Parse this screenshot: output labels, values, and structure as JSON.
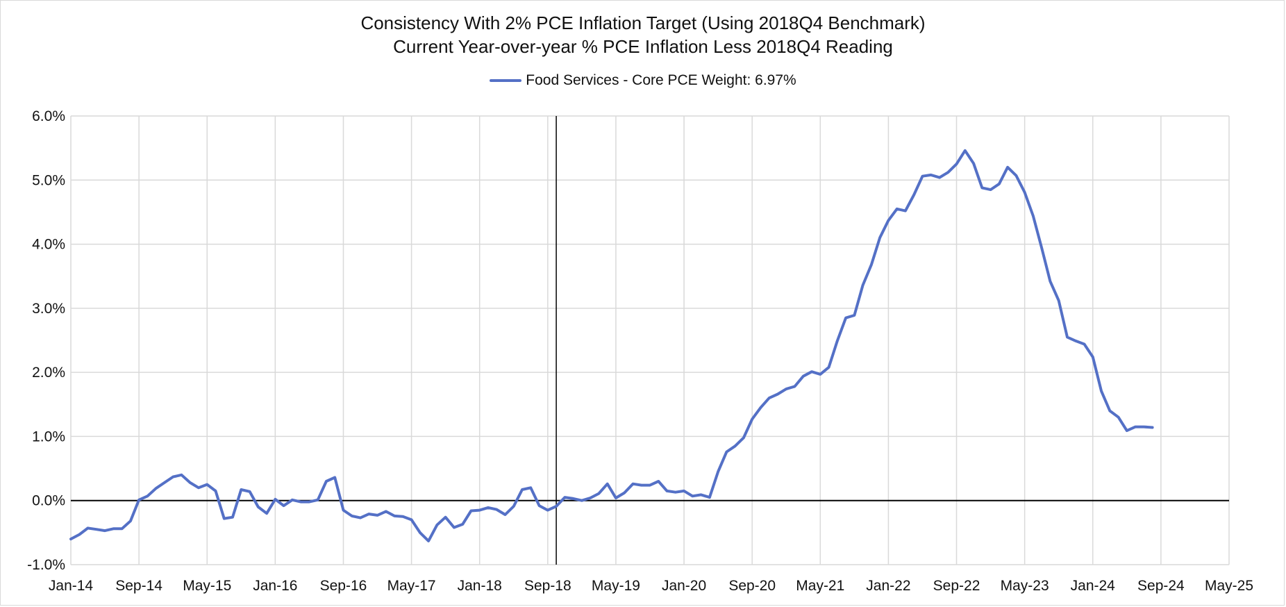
{
  "chart_data": {
    "type": "line",
    "title": "Consistency With 2% PCE Inflation Target (Using 2018Q4 Benchmark)",
    "subtitle": "Current Year-over-year % PCE Inflation Less 2018Q4 Reading",
    "legend_position": "top-center",
    "grid": true,
    "ylim": [
      -1.0,
      6.0
    ],
    "y_ticks": [
      "-1.0%",
      "0.0%",
      "1.0%",
      "2.0%",
      "3.0%",
      "4.0%",
      "5.0%",
      "6.0%"
    ],
    "y_tick_values": [
      -1,
      0,
      1,
      2,
      3,
      4,
      5,
      6
    ],
    "xlim": [
      "2014-01",
      "2025-05"
    ],
    "x_ticks": [
      "Jan-14",
      "Sep-14",
      "May-15",
      "Jan-16",
      "Sep-16",
      "May-17",
      "Jan-18",
      "Sep-18",
      "May-19",
      "Jan-20",
      "Sep-20",
      "May-21",
      "Jan-22",
      "Sep-22",
      "May-23",
      "Jan-24",
      "Sep-24",
      "May-25"
    ],
    "x_tick_values": [
      "2014-01",
      "2014-09",
      "2015-05",
      "2016-01",
      "2016-09",
      "2017-05",
      "2018-01",
      "2018-09",
      "2019-05",
      "2020-01",
      "2020-09",
      "2021-05",
      "2022-01",
      "2022-09",
      "2023-05",
      "2024-01",
      "2024-09",
      "2025-05"
    ],
    "vertical_reference_line": "2018-10",
    "series": [
      {
        "name": "Food Services - Core PCE Weight: 6.97%",
        "color": "#5470c6",
        "x": [
          "2014-01",
          "2014-02",
          "2014-03",
          "2014-04",
          "2014-05",
          "2014-06",
          "2014-07",
          "2014-08",
          "2014-09",
          "2014-10",
          "2014-11",
          "2014-12",
          "2015-01",
          "2015-02",
          "2015-03",
          "2015-04",
          "2015-05",
          "2015-06",
          "2015-07",
          "2015-08",
          "2015-09",
          "2015-10",
          "2015-11",
          "2015-12",
          "2016-01",
          "2016-02",
          "2016-03",
          "2016-04",
          "2016-05",
          "2016-06",
          "2016-07",
          "2016-08",
          "2016-09",
          "2016-10",
          "2016-11",
          "2016-12",
          "2017-01",
          "2017-02",
          "2017-03",
          "2017-04",
          "2017-05",
          "2017-06",
          "2017-07",
          "2017-08",
          "2017-09",
          "2017-10",
          "2017-11",
          "2017-12",
          "2018-01",
          "2018-02",
          "2018-03",
          "2018-04",
          "2018-05",
          "2018-06",
          "2018-07",
          "2018-08",
          "2018-09",
          "2018-10",
          "2018-11",
          "2018-12",
          "2019-01",
          "2019-02",
          "2019-03",
          "2019-04",
          "2019-05",
          "2019-06",
          "2019-07",
          "2019-08",
          "2019-09",
          "2019-10",
          "2019-11",
          "2019-12",
          "2020-01",
          "2020-02",
          "2020-03",
          "2020-04",
          "2020-05",
          "2020-06",
          "2020-07",
          "2020-08",
          "2020-09",
          "2020-10",
          "2020-11",
          "2020-12",
          "2021-01",
          "2021-02",
          "2021-03",
          "2021-04",
          "2021-05",
          "2021-06",
          "2021-07",
          "2021-08",
          "2021-09",
          "2021-10",
          "2021-11",
          "2021-12",
          "2022-01",
          "2022-02",
          "2022-03",
          "2022-04",
          "2022-05",
          "2022-06",
          "2022-07",
          "2022-08",
          "2022-09",
          "2022-10",
          "2022-11",
          "2022-12",
          "2023-01",
          "2023-02",
          "2023-03",
          "2023-04",
          "2023-05",
          "2023-06",
          "2023-07",
          "2023-08",
          "2023-09",
          "2023-10",
          "2023-11",
          "2023-12",
          "2024-01",
          "2024-02",
          "2024-03",
          "2024-04",
          "2024-05",
          "2024-06",
          "2024-07",
          "2024-08"
        ],
        "values": [
          -0.6,
          -0.53,
          -0.43,
          -0.45,
          -0.47,
          -0.44,
          -0.44,
          -0.32,
          0.01,
          0.07,
          0.19,
          0.28,
          0.37,
          0.4,
          0.28,
          0.2,
          0.25,
          0.15,
          -0.28,
          -0.26,
          0.17,
          0.14,
          -0.1,
          -0.2,
          0.02,
          -0.08,
          0.01,
          -0.02,
          -0.02,
          0.01,
          0.3,
          0.36,
          -0.15,
          -0.24,
          -0.27,
          -0.21,
          -0.23,
          -0.17,
          -0.24,
          -0.25,
          -0.3,
          -0.5,
          -0.63,
          -0.38,
          -0.26,
          -0.42,
          -0.37,
          -0.16,
          -0.15,
          -0.11,
          -0.14,
          -0.22,
          -0.09,
          0.17,
          0.2,
          -0.08,
          -0.15,
          -0.09,
          0.05,
          0.03,
          0.0,
          0.04,
          0.11,
          0.26,
          0.04,
          0.12,
          0.26,
          0.24,
          0.24,
          0.3,
          0.15,
          0.13,
          0.15,
          0.07,
          0.09,
          0.05,
          0.45,
          0.76,
          0.85,
          0.98,
          1.27,
          1.45,
          1.6,
          1.66,
          1.74,
          1.78,
          1.94,
          2.01,
          1.97,
          2.08,
          2.49,
          2.85,
          2.89,
          3.36,
          3.68,
          4.1,
          4.37,
          4.55,
          4.52,
          4.77,
          5.06,
          5.08,
          5.04,
          5.12,
          5.25,
          5.46,
          5.26,
          4.88,
          4.85,
          4.94,
          5.2,
          5.07,
          4.81,
          4.44,
          3.94,
          3.42,
          3.12,
          2.55,
          2.49,
          2.44,
          2.24,
          1.71,
          1.4,
          1.3,
          1.09,
          1.15,
          1.15,
          1.14
        ]
      }
    ]
  }
}
